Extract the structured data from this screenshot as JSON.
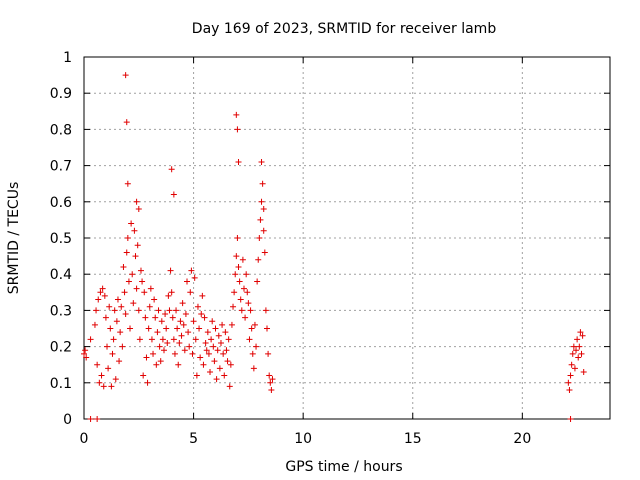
{
  "chart_data": {
    "type": "scatter",
    "title": "Day 169 of 2023, SRMTID for receiver lamb",
    "xlabel": "GPS time / hours",
    "ylabel": "SRMTID / TECUs",
    "xlim": [
      0,
      24
    ],
    "ylim": [
      0,
      1
    ],
    "x_ticks": [
      0,
      5,
      10,
      15,
      20
    ],
    "x_tick_labels": [
      "0",
      "5",
      "10",
      "15",
      "20"
    ],
    "y_ticks": [
      0,
      0.1,
      0.2,
      0.3,
      0.4,
      0.5,
      0.6,
      0.7,
      0.8,
      0.9,
      1
    ],
    "y_tick_labels": [
      "0",
      "0.1",
      "0.2",
      "0.3",
      "0.4",
      "0.5",
      "0.6",
      "0.7",
      "0.8",
      "0.9",
      "1"
    ],
    "grid": true,
    "marker": "+",
    "colors": {
      "series": "#e00000",
      "grid": "#a0a0a0",
      "axes": "#000000"
    },
    "series": [
      {
        "name": "SRMTID",
        "x": [
          0.0,
          0.05,
          0.1,
          0.3,
          0.5,
          0.55,
          0.6,
          0.65,
          0.7,
          0.75,
          0.8,
          0.85,
          0.9,
          0.95,
          1.0,
          1.05,
          1.1,
          1.15,
          1.2,
          1.25,
          1.3,
          1.35,
          1.4,
          1.45,
          1.5,
          1.55,
          1.6,
          1.65,
          1.7,
          1.75,
          1.8,
          1.85,
          1.9,
          1.95,
          2.0,
          2.05,
          2.1,
          2.15,
          2.2,
          2.25,
          2.3,
          2.35,
          2.4,
          2.45,
          2.5,
          2.55,
          2.6,
          2.65,
          2.7,
          2.75,
          2.8,
          2.85,
          2.9,
          2.95,
          3.0,
          3.05,
          3.1,
          3.15,
          3.2,
          3.25,
          3.3,
          3.35,
          3.4,
          3.45,
          3.5,
          3.55,
          3.6,
          3.65,
          3.7,
          3.75,
          3.8,
          3.85,
          3.9,
          3.95,
          4.0,
          4.05,
          4.1,
          4.15,
          4.2,
          4.25,
          4.3,
          4.35,
          4.4,
          4.45,
          4.5,
          4.55,
          4.6,
          4.65,
          4.7,
          4.75,
          4.8,
          4.85,
          4.9,
          4.95,
          5.0,
          5.05,
          5.1,
          5.15,
          5.2,
          5.25,
          5.3,
          5.35,
          5.4,
          5.45,
          5.5,
          5.55,
          5.6,
          5.65,
          5.7,
          5.75,
          5.8,
          5.85,
          5.9,
          5.95,
          6.0,
          6.05,
          6.1,
          6.15,
          6.2,
          6.25,
          6.3,
          6.35,
          6.4,
          6.45,
          6.5,
          6.55,
          6.6,
          6.65,
          6.7,
          6.75,
          6.8,
          6.85,
          6.9,
          6.95,
          7.0,
          7.05,
          7.1,
          7.15,
          7.2,
          7.25,
          7.3,
          7.35,
          7.4,
          7.45,
          7.5,
          7.55,
          7.6,
          7.65,
          7.7,
          7.75,
          7.8,
          7.85,
          7.9,
          7.95,
          8.0,
          8.05,
          8.1,
          8.15,
          8.2,
          8.25,
          8.3,
          8.35,
          8.4,
          8.45,
          8.5,
          8.55,
          8.6,
          1.9,
          1.95,
          2.0,
          6.95,
          7.0,
          7.05,
          4.0,
          4.1,
          2.4,
          2.5,
          8.1,
          8.2,
          22.1,
          22.15,
          22.2,
          22.25,
          22.3,
          22.35,
          22.4,
          22.45,
          22.5,
          22.55,
          22.6,
          22.65,
          22.7,
          22.75,
          22.8,
          0.3,
          0.6,
          22.2
        ],
        "y": [
          0.18,
          0.19,
          0.17,
          0.22,
          0.26,
          0.3,
          0.15,
          0.33,
          0.1,
          0.35,
          0.12,
          0.36,
          0.09,
          0.34,
          0.28,
          0.2,
          0.14,
          0.31,
          0.25,
          0.09,
          0.18,
          0.22,
          0.3,
          0.11,
          0.27,
          0.33,
          0.16,
          0.24,
          0.31,
          0.2,
          0.42,
          0.35,
          0.29,
          0.46,
          0.5,
          0.38,
          0.25,
          0.54,
          0.4,
          0.32,
          0.52,
          0.45,
          0.36,
          0.48,
          0.3,
          0.22,
          0.41,
          0.38,
          0.12,
          0.35,
          0.28,
          0.17,
          0.1,
          0.25,
          0.31,
          0.36,
          0.22,
          0.18,
          0.33,
          0.28,
          0.15,
          0.24,
          0.3,
          0.2,
          0.16,
          0.27,
          0.22,
          0.19,
          0.29,
          0.25,
          0.21,
          0.34,
          0.3,
          0.41,
          0.35,
          0.28,
          0.22,
          0.18,
          0.3,
          0.25,
          0.15,
          0.21,
          0.27,
          0.23,
          0.32,
          0.26,
          0.19,
          0.29,
          0.38,
          0.24,
          0.2,
          0.35,
          0.41,
          0.18,
          0.27,
          0.39,
          0.22,
          0.12,
          0.31,
          0.25,
          0.17,
          0.29,
          0.34,
          0.15,
          0.28,
          0.21,
          0.19,
          0.24,
          0.18,
          0.13,
          0.22,
          0.27,
          0.2,
          0.16,
          0.25,
          0.11,
          0.19,
          0.23,
          0.14,
          0.21,
          0.26,
          0.18,
          0.12,
          0.24,
          0.19,
          0.16,
          0.22,
          0.09,
          0.15,
          0.26,
          0.31,
          0.35,
          0.4,
          0.45,
          0.5,
          0.42,
          0.38,
          0.33,
          0.3,
          0.44,
          0.36,
          0.28,
          0.4,
          0.35,
          0.32,
          0.22,
          0.3,
          0.25,
          0.18,
          0.14,
          0.26,
          0.2,
          0.38,
          0.44,
          0.5,
          0.55,
          0.6,
          0.65,
          0.52,
          0.46,
          0.3,
          0.25,
          0.18,
          0.12,
          0.1,
          0.08,
          0.11,
          0.95,
          0.82,
          0.65,
          0.84,
          0.8,
          0.71,
          0.69,
          0.62,
          0.6,
          0.58,
          0.71,
          0.58,
          0.1,
          0.08,
          0.12,
          0.15,
          0.18,
          0.2,
          0.14,
          0.19,
          0.22,
          0.17,
          0.2,
          0.24,
          0.18,
          0.23,
          0.13,
          0.0,
          0.0,
          0.0
        ]
      }
    ]
  }
}
